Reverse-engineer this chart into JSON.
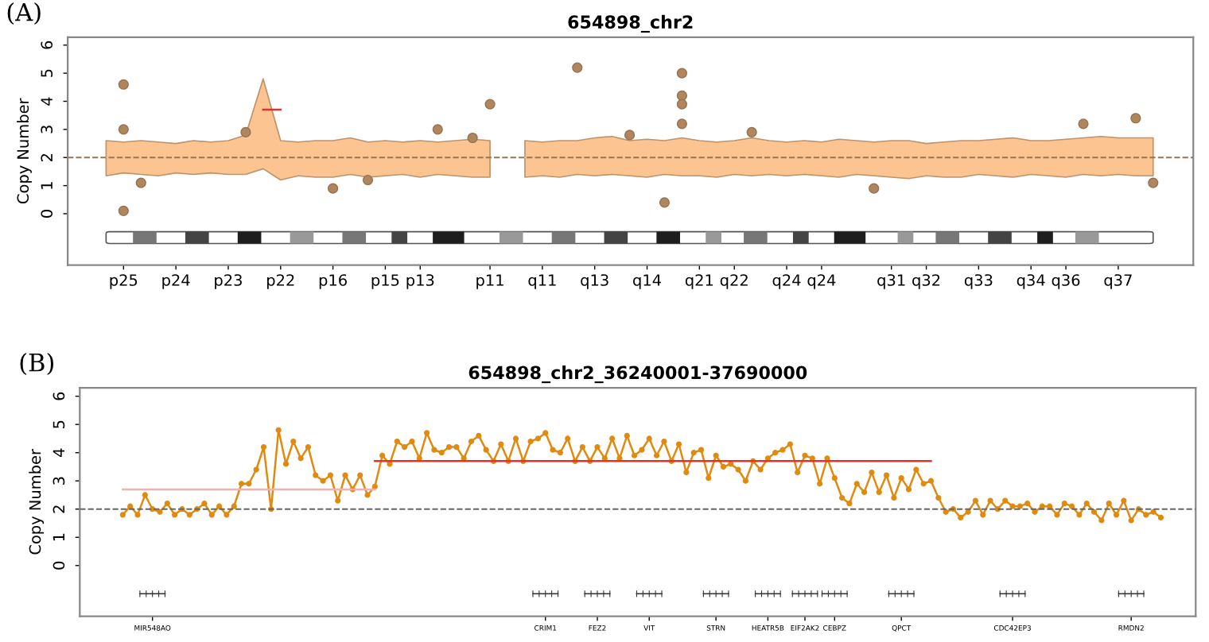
{
  "chart_data": [
    {
      "type": "line",
      "title": "654898_chr2",
      "ylabel": "Copy Number",
      "annotations": [
        "(A)"
      ],
      "ref_lines": [
        {
          "axis": "y",
          "value": 2,
          "color": "#977656",
          "line_style": "dashed"
        }
      ],
      "ylim": [
        -1.83,
        6.28
      ],
      "yticks": [
        0,
        1,
        2,
        3,
        4,
        5,
        6
      ],
      "categories": [
        null,
        "p25",
        null,
        null,
        "p24",
        null,
        null,
        "p23",
        null,
        null,
        "p22",
        null,
        null,
        "p16",
        null,
        null,
        "p15",
        null,
        "p13",
        null,
        null,
        null,
        "p11",
        null,
        null,
        "q11",
        null,
        null,
        "q13",
        null,
        null,
        "q14",
        null,
        null,
        "q21",
        null,
        "q22",
        null,
        null,
        "q24",
        null,
        "q24",
        null,
        null,
        null,
        "q31",
        null,
        "q32",
        null,
        null,
        "q33",
        null,
        null,
        "q34",
        null,
        "q36",
        null,
        null,
        "q37",
        null,
        null
      ],
      "series": [
        {
          "color": "#fbc490",
          "values": [
            2,
            2,
            2,
            2,
            2,
            2,
            2,
            2,
            2,
            2,
            2,
            2,
            2,
            2,
            2,
            2,
            2,
            2,
            2,
            2,
            2,
            2,
            2,
            null,
            2,
            2,
            2,
            2,
            2,
            2,
            2,
            2,
            2,
            2,
            2,
            2,
            2,
            2,
            2,
            2,
            2,
            2,
            2,
            2,
            2,
            2,
            2,
            2,
            2,
            2,
            2,
            2,
            2,
            2,
            2,
            2,
            2,
            2,
            2,
            2,
            2
          ],
          "upper": [
            2.6,
            2.55,
            2.6,
            2.55,
            2.5,
            2.6,
            2.55,
            2.6,
            2.8,
            4.8,
            2.6,
            2.55,
            2.6,
            2.6,
            2.7,
            2.55,
            2.6,
            2.55,
            2.6,
            2.55,
            2.6,
            2.65,
            2.6,
            null,
            2.6,
            2.55,
            2.6,
            2.6,
            2.7,
            2.75,
            2.6,
            2.65,
            2.6,
            2.7,
            2.6,
            2.55,
            2.6,
            2.7,
            2.6,
            2.55,
            2.6,
            2.55,
            2.65,
            2.6,
            2.55,
            2.6,
            2.6,
            2.5,
            2.55,
            2.6,
            2.6,
            2.65,
            2.7,
            2.6,
            2.6,
            2.65,
            2.7,
            2.75,
            2.7,
            2.7,
            2.7
          ],
          "lower": [
            1.35,
            1.45,
            1.4,
            1.35,
            1.45,
            1.4,
            1.45,
            1.4,
            1.4,
            1.6,
            1.2,
            1.35,
            1.3,
            1.3,
            1.4,
            1.3,
            1.35,
            1.4,
            1.3,
            1.4,
            1.35,
            1.3,
            1.3,
            null,
            1.3,
            1.35,
            1.3,
            1.4,
            1.35,
            1.4,
            1.35,
            1.3,
            1.4,
            1.35,
            1.35,
            1.3,
            1.4,
            1.35,
            1.4,
            1.35,
            1.4,
            1.35,
            1.3,
            1.4,
            1.35,
            1.3,
            1.25,
            1.35,
            1.3,
            1.3,
            1.4,
            1.35,
            1.3,
            1.4,
            1.35,
            1.3,
            1.4,
            1.35,
            1.4,
            1.35,
            1.35
          ]
        },
        {
          "color": "#e8302a",
          "values": [
            null,
            null,
            null,
            null,
            null,
            null,
            null,
            null,
            null,
            3.7,
            3.7,
            null,
            null,
            null,
            null,
            null,
            null,
            null,
            null,
            null,
            null,
            null,
            null,
            null,
            null,
            null,
            null,
            null,
            null,
            null,
            null,
            null,
            null,
            null,
            null,
            null,
            null,
            null,
            null,
            null,
            null,
            null,
            null,
            null,
            null,
            null,
            null,
            null,
            null,
            null,
            null,
            null,
            null,
            null,
            null,
            null,
            null,
            null,
            null,
            null,
            null
          ]
        },
        {
          "type": "scatter",
          "color": "#b0865e",
          "marker": "circle",
          "values": [
            null,
            4.6,
            1.1,
            null,
            null,
            null,
            null,
            null,
            2.9,
            null,
            null,
            null,
            null,
            0.9,
            null,
            1.2,
            null,
            null,
            null,
            3.0,
            null,
            2.7,
            3.9,
            null,
            null,
            null,
            null,
            5.2,
            null,
            null,
            2.8,
            null,
            0.4,
            5.0,
            null,
            null,
            null,
            2.9,
            null,
            null,
            null,
            null,
            null,
            null,
            0.9,
            null,
            null,
            null,
            null,
            null,
            null,
            null,
            null,
            null,
            null,
            null,
            3.2,
            null,
            null,
            3.4,
            1.1
          ]
        },
        {
          "type": "scatter",
          "color": "#b0865e",
          "marker": "circle",
          "values": [
            null,
            3.0,
            null,
            null,
            null,
            null,
            null,
            null,
            null,
            null,
            null,
            null,
            null,
            null,
            null,
            null,
            null,
            null,
            null,
            null,
            null,
            null,
            null,
            null,
            null,
            null,
            null,
            null,
            null,
            null,
            null,
            null,
            null,
            4.2,
            null,
            null,
            null,
            null,
            null,
            null,
            null,
            null,
            null,
            null,
            null,
            null,
            null,
            null,
            null,
            null,
            null,
            null,
            null,
            null,
            null,
            null,
            null,
            null,
            null,
            null,
            null
          ]
        },
        {
          "type": "scatter",
          "color": "#b0865e",
          "marker": "circle",
          "values": [
            null,
            0.1,
            null,
            null,
            null,
            null,
            null,
            null,
            null,
            null,
            null,
            null,
            null,
            null,
            null,
            null,
            null,
            null,
            null,
            null,
            null,
            null,
            null,
            null,
            null,
            null,
            null,
            null,
            null,
            null,
            null,
            null,
            null,
            3.9,
            null,
            null,
            null,
            null,
            null,
            null,
            null,
            null,
            null,
            null,
            null,
            null,
            null,
            null,
            null,
            null,
            null,
            null,
            null,
            null,
            null,
            null,
            null,
            null,
            null,
            null,
            null
          ]
        },
        {
          "type": "scatter",
          "color": "#b0865e",
          "marker": "circle",
          "values": [
            null,
            null,
            null,
            null,
            null,
            null,
            null,
            null,
            null,
            null,
            null,
            null,
            null,
            null,
            null,
            null,
            null,
            null,
            null,
            null,
            null,
            null,
            null,
            null,
            null,
            null,
            null,
            null,
            null,
            null,
            null,
            null,
            null,
            3.2,
            null,
            null,
            null,
            null,
            null,
            null,
            null,
            null,
            null,
            null,
            null,
            null,
            null,
            null,
            null,
            null,
            null,
            null,
            null,
            null,
            null,
            null,
            null,
            null,
            null,
            null,
            null
          ]
        }
      ]
    },
    {
      "type": "line",
      "title": "654898_chr2_36240001-37690000",
      "ylabel": "Copy Number",
      "annotations": [
        "(B)"
      ],
      "ylim": [
        -1.8,
        6.3
      ],
      "yticks": [
        0,
        1,
        2,
        3,
        4,
        5,
        6
      ],
      "categories": [
        null,
        null,
        null,
        null,
        "MIR548AO",
        null,
        null,
        null,
        null,
        null,
        null,
        null,
        null,
        null,
        null,
        null,
        null,
        null,
        null,
        null,
        null,
        null,
        null,
        null,
        null,
        null,
        null,
        null,
        null,
        null,
        null,
        null,
        null,
        null,
        null,
        null,
        null,
        null,
        null,
        null,
        null,
        null,
        null,
        null,
        null,
        null,
        null,
        null,
        null,
        null,
        null,
        null,
        null,
        null,
        null,
        null,
        null,
        "CRIM1",
        null,
        null,
        null,
        null,
        null,
        null,
        "FEZ2",
        null,
        null,
        null,
        null,
        null,
        null,
        "VIT",
        null,
        null,
        null,
        null,
        null,
        null,
        null,
        null,
        "STRN",
        null,
        null,
        null,
        null,
        null,
        null,
        "HEATR5B",
        null,
        null,
        null,
        null,
        "EIF2AK2",
        null,
        null,
        null,
        "CEBPZ",
        null,
        null,
        null,
        null,
        null,
        null,
        null,
        null,
        "QPCT",
        null,
        null,
        null,
        null,
        null,
        null,
        null,
        null,
        null,
        null,
        null,
        null,
        null,
        null,
        "CDC42EP3",
        null,
        null,
        null,
        null,
        null,
        null,
        null,
        null,
        null,
        null,
        null,
        null,
        null,
        null,
        null,
        "RMDN2",
        null,
        null,
        null,
        null
      ],
      "ref_lines": [
        {
          "axis": "y",
          "value": 2,
          "color": "#666666",
          "line_style": "dashed"
        }
      ],
      "series": [
        {
          "color": "#e08a10",
          "marker": "circle",
          "values": [
            1.8,
            2.1,
            1.8,
            2.5,
            2.0,
            1.9,
            2.2,
            1.8,
            2.0,
            1.8,
            2.0,
            2.2,
            1.8,
            2.1,
            1.8,
            2.1,
            2.9,
            2.9,
            3.4,
            4.2,
            2.0,
            4.8,
            3.6,
            4.4,
            3.8,
            4.2,
            3.2,
            3.0,
            3.2,
            2.3,
            3.2,
            2.7,
            3.2,
            2.5,
            2.8,
            3.9,
            3.6,
            4.4,
            4.2,
            4.4,
            3.8,
            4.7,
            4.1,
            4.0,
            4.2,
            4.2,
            3.8,
            4.4,
            4.6,
            4.1,
            3.7,
            4.3,
            3.7,
            4.5,
            3.7,
            4.4,
            4.5,
            4.7,
            4.1,
            4.0,
            4.5,
            3.7,
            4.2,
            3.7,
            4.2,
            3.8,
            4.5,
            3.8,
            4.6,
            3.9,
            4.1,
            4.5,
            3.9,
            4.4,
            3.7,
            4.3,
            3.3,
            4.0,
            4.1,
            3.1,
            3.9,
            3.5,
            3.6,
            3.4,
            3.0,
            3.7,
            3.4,
            3.8,
            4.0,
            4.1,
            4.3,
            3.3,
            3.9,
            3.8,
            2.9,
            3.8,
            3.1,
            2.4,
            2.2,
            2.9,
            2.6,
            3.3,
            2.6,
            3.2,
            2.4,
            3.1,
            2.7,
            3.4,
            2.9,
            3.0,
            2.4,
            1.9,
            2.0,
            1.7,
            1.9,
            2.3,
            1.8,
            2.3,
            2.0,
            2.3,
            2.1,
            2.1,
            2.2,
            1.9,
            2.1,
            2.1,
            1.8,
            2.2,
            2.1,
            1.8,
            2.2,
            1.9,
            1.6,
            2.2,
            1.8,
            2.3,
            1.6,
            2.0,
            1.8,
            1.9,
            1.7
          ]
        },
        {
          "color": "#f4b0b0",
          "values": [
            2.7,
            2.7,
            2.7,
            2.7,
            2.7,
            2.7,
            2.7,
            2.7,
            2.7,
            2.7,
            2.7,
            2.7,
            2.7,
            2.7,
            2.7,
            2.7,
            2.7,
            2.7,
            2.7,
            2.7,
            2.7,
            2.7,
            2.7,
            2.7,
            2.7,
            2.7,
            2.7,
            2.7,
            2.7,
            2.7,
            2.7,
            2.7,
            2.7,
            2.7,
            2.7,
            null,
            null,
            null,
            null,
            null,
            null,
            null,
            null,
            null,
            null,
            null,
            null,
            null,
            null,
            null,
            null,
            null,
            null,
            null,
            null,
            null,
            null,
            null,
            null,
            null,
            null,
            null,
            null,
            null,
            null,
            null,
            null,
            null,
            null,
            null,
            null,
            null,
            null,
            null,
            null,
            null,
            null,
            null,
            null,
            null,
            null,
            null,
            null,
            null,
            null,
            null,
            null,
            null,
            null,
            null,
            null,
            null,
            null,
            null,
            null,
            null,
            null,
            null,
            null,
            null,
            null,
            null,
            null,
            null,
            null,
            null,
            null,
            null,
            null,
            null,
            null,
            null,
            null,
            null,
            null,
            null,
            null,
            null,
            null,
            null,
            null,
            null,
            null,
            null,
            null,
            null,
            null,
            null,
            null,
            null,
            null,
            null,
            null,
            null,
            null,
            null,
            null,
            null,
            null,
            null,
            null
          ]
        },
        {
          "color": "#e8302a",
          "values": [
            null,
            null,
            null,
            null,
            null,
            null,
            null,
            null,
            null,
            null,
            null,
            null,
            null,
            null,
            null,
            null,
            null,
            null,
            null,
            null,
            null,
            null,
            null,
            null,
            null,
            null,
            null,
            null,
            null,
            null,
            null,
            null,
            null,
            null,
            3.7,
            3.7,
            3.7,
            3.7,
            3.7,
            3.7,
            3.7,
            3.7,
            3.7,
            3.7,
            3.7,
            3.7,
            3.7,
            3.7,
            3.7,
            3.7,
            3.7,
            3.7,
            3.7,
            3.7,
            3.7,
            3.7,
            3.7,
            3.7,
            3.7,
            3.7,
            3.7,
            3.7,
            3.7,
            3.7,
            3.7,
            3.7,
            3.7,
            3.7,
            3.7,
            3.7,
            3.7,
            3.7,
            3.7,
            3.7,
            3.7,
            3.7,
            3.7,
            3.7,
            3.7,
            3.7,
            3.7,
            3.7,
            3.7,
            3.7,
            3.7,
            3.7,
            3.7,
            3.7,
            3.7,
            3.7,
            3.7,
            3.7,
            3.7,
            3.7,
            3.7,
            3.7,
            3.7,
            3.7,
            3.7,
            3.7,
            3.7,
            3.7,
            3.7,
            3.7,
            3.7,
            3.7,
            3.7,
            3.7,
            3.7,
            3.7,
            null,
            null,
            null,
            null,
            null,
            null,
            null,
            null,
            null,
            null,
            null,
            null,
            null,
            null,
            null,
            null,
            null,
            null,
            null,
            null,
            null,
            null,
            null,
            null,
            null,
            null,
            null,
            null,
            null,
            null,
            null
          ]
        }
      ]
    }
  ]
}
